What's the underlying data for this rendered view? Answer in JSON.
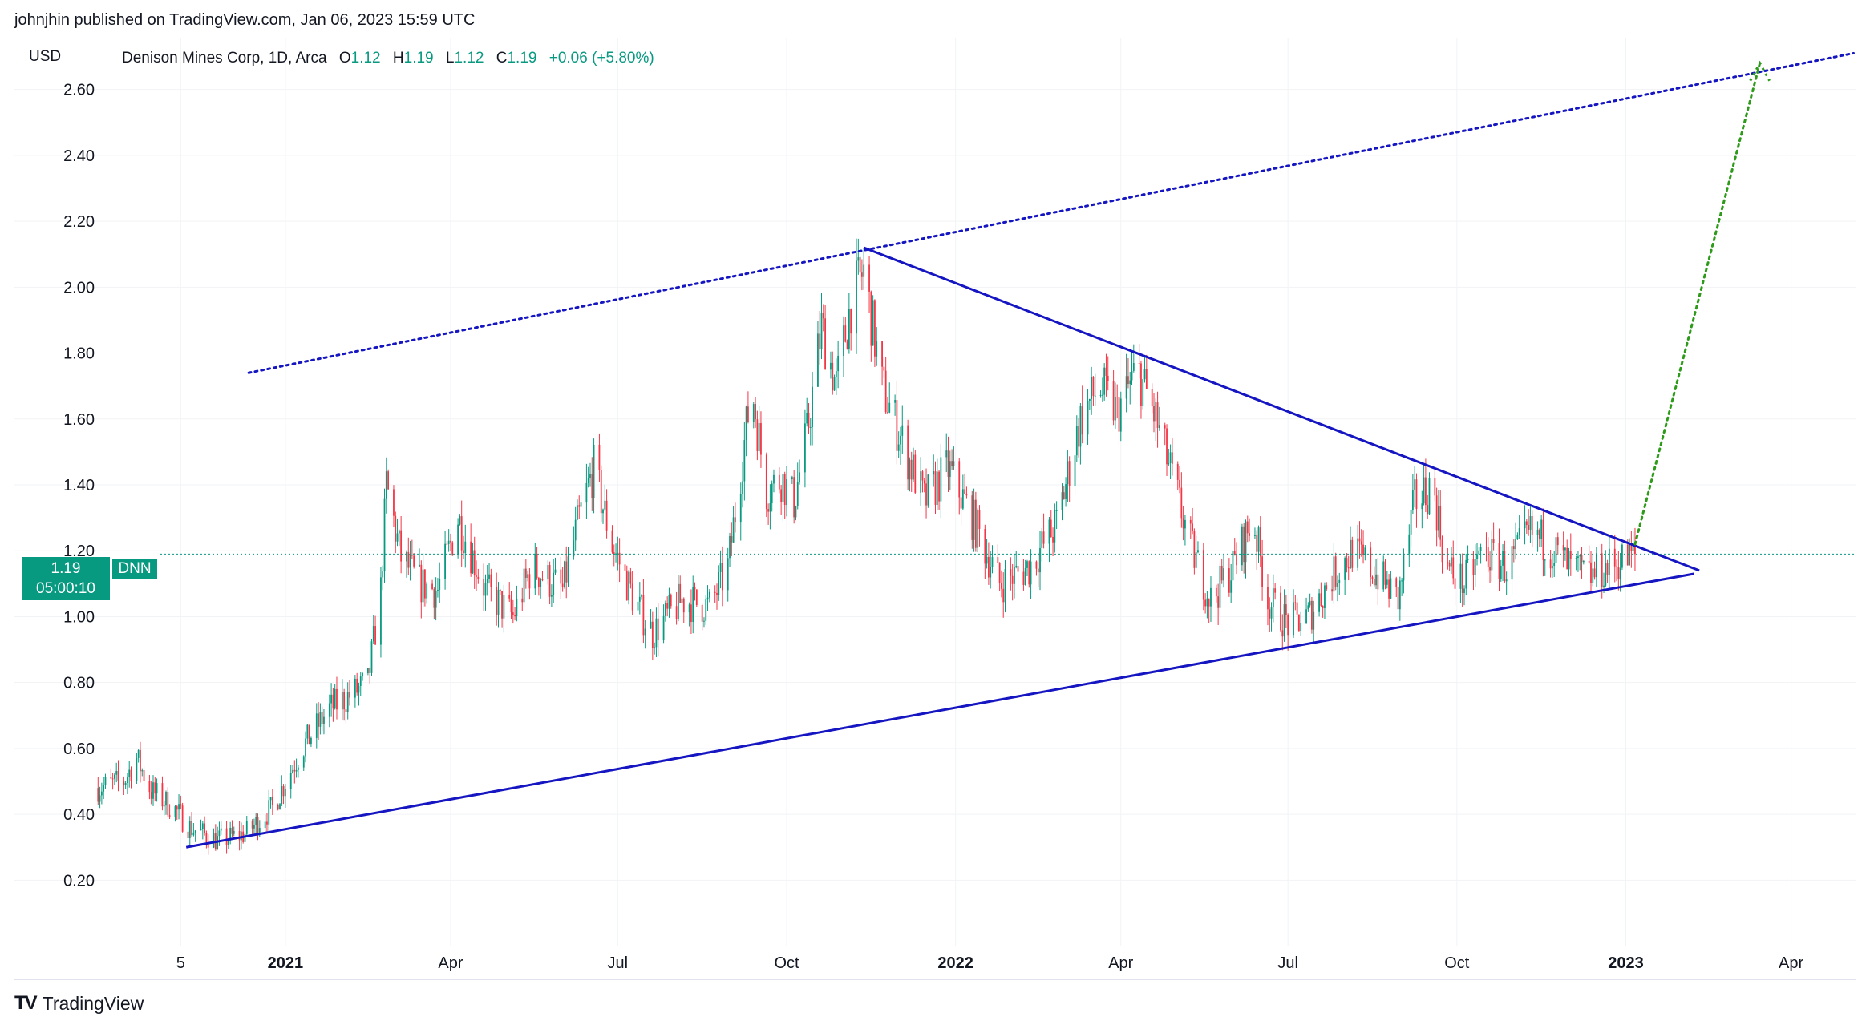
{
  "header": {
    "published_line": "johnjhin published on TradingView.com, Jan 06, 2023 15:59 UTC"
  },
  "legend": {
    "currency": "USD",
    "title": "Denison Mines Corp, 1D, Arca",
    "o_label": "O",
    "o_value": "1.12",
    "h_label": "H",
    "h_value": "1.19",
    "l_label": "L",
    "l_value": "1.12",
    "c_label": "C",
    "c_value": "1.19",
    "change": "+0.06 (+5.80%)"
  },
  "price_badge": {
    "price": "1.19",
    "countdown": "05:00:10",
    "symbol": "DNN"
  },
  "footer": {
    "logo": "TradingView"
  },
  "colors": {
    "up": "#089981",
    "down": "#f23645",
    "trendline": "#1515c2",
    "projection": "#2e9a1a",
    "grid": "#f2f3f5"
  },
  "chart_data": {
    "type": "candlestick",
    "instrument": "Denison Mines Corp, 1D, Arca",
    "ylim": [
      0.05,
      2.75
    ],
    "yticks": [
      0.2,
      0.4,
      0.6,
      0.8,
      1.0,
      1.2,
      1.4,
      1.6,
      1.8,
      2.0,
      2.2,
      2.4,
      2.6
    ],
    "ytick_labels": [
      "0.20",
      "0.40",
      "0.60",
      "0.80",
      "1.00",
      "1.20",
      "1.40",
      "1.60",
      "1.80",
      "2.00",
      "2.20",
      "2.40",
      "2.60"
    ],
    "xlim": [
      "2020-09-20",
      "2023-04-30"
    ],
    "xticks": [
      {
        "date": "2020-11-05",
        "label": "5",
        "bold": false
      },
      {
        "date": "2021-01-01",
        "label": "2021",
        "bold": true
      },
      {
        "date": "2021-04-01",
        "label": "Apr",
        "bold": false
      },
      {
        "date": "2021-07-01",
        "label": "Jul",
        "bold": false
      },
      {
        "date": "2021-10-01",
        "label": "Oct",
        "bold": false
      },
      {
        "date": "2022-01-01",
        "label": "2022",
        "bold": true
      },
      {
        "date": "2022-04-01",
        "label": "Apr",
        "bold": false
      },
      {
        "date": "2022-07-01",
        "label": "Jul",
        "bold": false
      },
      {
        "date": "2022-10-01",
        "label": "Oct",
        "bold": false
      },
      {
        "date": "2023-01-01",
        "label": "2023",
        "bold": true
      },
      {
        "date": "2023-04-01",
        "label": "Apr",
        "bold": false
      }
    ],
    "price_path": [
      [
        "2020-09-20",
        0.48
      ],
      [
        "2020-10-05",
        0.5
      ],
      [
        "2020-10-12",
        0.57
      ],
      [
        "2020-10-20",
        0.47
      ],
      [
        "2020-11-01",
        0.42
      ],
      [
        "2020-11-10",
        0.36
      ],
      [
        "2020-11-25",
        0.32
      ],
      [
        "2020-12-10",
        0.34
      ],
      [
        "2020-12-25",
        0.42
      ],
      [
        "2021-01-10",
        0.6
      ],
      [
        "2021-01-25",
        0.72
      ],
      [
        "2021-02-05",
        0.76
      ],
      [
        "2021-02-15",
        0.8
      ],
      [
        "2021-02-22",
        1.08
      ],
      [
        "2021-02-25",
        1.4
      ],
      [
        "2021-03-05",
        1.18
      ],
      [
        "2021-03-15",
        1.1
      ],
      [
        "2021-03-25",
        1.08
      ],
      [
        "2021-04-05",
        1.3
      ],
      [
        "2021-04-20",
        1.08
      ],
      [
        "2021-05-05",
        1.0
      ],
      [
        "2021-05-15",
        1.15
      ],
      [
        "2021-06-01",
        1.08
      ],
      [
        "2021-06-10",
        1.3
      ],
      [
        "2021-06-18",
        1.45
      ],
      [
        "2021-06-28",
        1.22
      ],
      [
        "2021-07-10",
        1.05
      ],
      [
        "2021-07-20",
        0.95
      ],
      [
        "2021-08-05",
        1.05
      ],
      [
        "2021-08-20",
        1.03
      ],
      [
        "2021-08-30",
        1.15
      ],
      [
        "2021-09-05",
        1.4
      ],
      [
        "2021-09-12",
        1.7
      ],
      [
        "2021-09-20",
        1.38
      ],
      [
        "2021-09-28",
        1.42
      ],
      [
        "2021-10-05",
        1.35
      ],
      [
        "2021-10-12",
        1.55
      ],
      [
        "2021-10-20",
        1.88
      ],
      [
        "2021-10-28",
        1.7
      ],
      [
        "2021-11-05",
        1.95
      ],
      [
        "2021-11-12",
        2.05
      ],
      [
        "2021-11-22",
        1.7
      ],
      [
        "2021-12-05",
        1.5
      ],
      [
        "2021-12-15",
        1.35
      ],
      [
        "2021-12-28",
        1.45
      ],
      [
        "2022-01-10",
        1.3
      ],
      [
        "2022-01-25",
        1.1
      ],
      [
        "2022-02-10",
        1.15
      ],
      [
        "2022-02-25",
        1.28
      ],
      [
        "2022-03-10",
        1.6
      ],
      [
        "2022-03-20",
        1.7
      ],
      [
        "2022-03-30",
        1.62
      ],
      [
        "2022-04-10",
        1.75
      ],
      [
        "2022-04-20",
        1.6
      ],
      [
        "2022-04-30",
        1.4
      ],
      [
        "2022-05-10",
        1.2
      ],
      [
        "2022-05-20",
        1.05
      ],
      [
        "2022-06-01",
        1.15
      ],
      [
        "2022-06-12",
        1.3
      ],
      [
        "2022-06-20",
        1.05
      ],
      [
        "2022-07-01",
        0.98
      ],
      [
        "2022-07-12",
        1.0
      ],
      [
        "2022-07-25",
        1.12
      ],
      [
        "2022-08-05",
        1.2
      ],
      [
        "2022-08-20",
        1.12
      ],
      [
        "2022-08-30",
        1.05
      ],
      [
        "2022-09-08",
        1.35
      ],
      [
        "2022-09-18",
        1.4
      ],
      [
        "2022-09-25",
        1.15
      ],
      [
        "2022-10-05",
        1.1
      ],
      [
        "2022-10-15",
        1.2
      ],
      [
        "2022-10-28",
        1.15
      ],
      [
        "2022-11-10",
        1.25
      ],
      [
        "2022-11-20",
        1.22
      ],
      [
        "2022-12-01",
        1.15
      ],
      [
        "2022-12-12",
        1.12
      ],
      [
        "2022-12-22",
        1.15
      ],
      [
        "2023-01-06",
        1.19
      ]
    ],
    "last_price": 1.19,
    "trendlines": [
      {
        "name": "resistance",
        "style": "solid",
        "color": "#1515c2",
        "from": [
          "2021-11-12",
          2.12
        ],
        "to": [
          "2023-02-10",
          1.14
        ]
      },
      {
        "name": "support",
        "style": "solid",
        "color": "#1515c2",
        "from": [
          "2020-11-08",
          0.3
        ],
        "to": [
          "2023-02-07",
          1.13
        ]
      },
      {
        "name": "upper-channel",
        "style": "dotted",
        "color": "#1515c2",
        "from": [
          "2020-12-12",
          1.74
        ],
        "to": [
          "2023-05-05",
          2.71
        ]
      },
      {
        "name": "projection",
        "style": "dotted",
        "color": "#2e9a1a",
        "from": [
          "2023-01-06",
          1.22
        ],
        "to": [
          "2023-03-15",
          2.68
        ]
      }
    ]
  }
}
